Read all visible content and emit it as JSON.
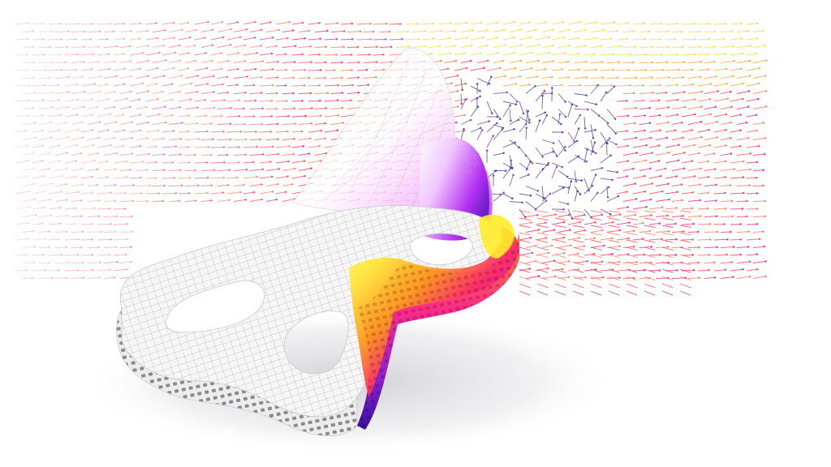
{
  "scene": {
    "background": "#ffffff",
    "shadow_color": "#d9d9dc",
    "shell_color": "#f4f4f4",
    "mesh_color": "#b9b9bb",
    "cavity_color": "#cfcfd1"
  },
  "heatmap": {
    "stops": [
      "#fffb6e",
      "#ffe63a",
      "#ff9a1f",
      "#ff2a6b",
      "#c41acb",
      "#5a17c8",
      "#2a0f8c"
    ]
  },
  "vector_field": {
    "arrow_colors": [
      "#ff6a4a",
      "#ff3a3a",
      "#e01f59",
      "#ff9a2a",
      "#ffd23a",
      "#3b2a8f",
      "#6b2aa8"
    ]
  }
}
